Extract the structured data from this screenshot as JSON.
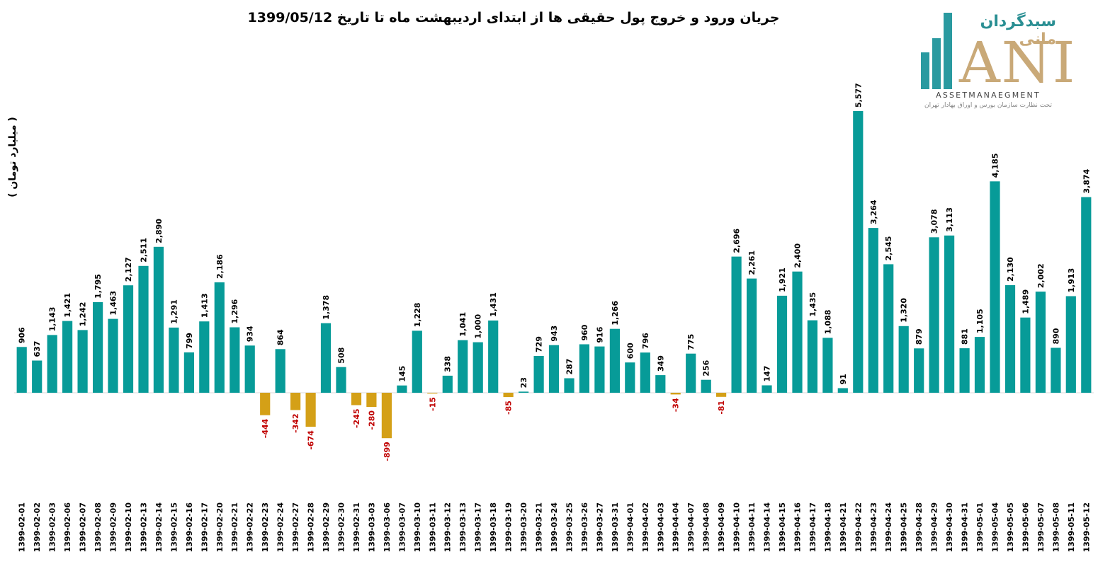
{
  "logo": {
    "brand_main": "سبدگردان",
    "brand_accent": "مانی",
    "letters": "ANI",
    "subtitle": "ASSETMANAEGMENT",
    "tagline": "تحت نظارت سازمان بورس و اوراق بهادار تهران"
  },
  "colors": {
    "positive": "#079B98",
    "negative": "#D4A017",
    "negative_label": "#C00000",
    "positive_label": "#000000"
  },
  "chart_data": {
    "type": "bar",
    "title": "جریان ورود و خروج پول حقیقی ها از ابتدای اردیبهشت ماه تا تاریخ 1399/05/12",
    "xlabel": "",
    "ylabel": "( میلیارد تومان )",
    "ylim": [
      -1500,
      6200
    ],
    "categories": [
      "1399-02-01",
      "1399-02-02",
      "1399-02-03",
      "1399-02-06",
      "1399-02-07",
      "1399-02-08",
      "1399-02-09",
      "1399-02-10",
      "1399-02-13",
      "1399-02-14",
      "1399-02-15",
      "1399-02-16",
      "1399-02-17",
      "1399-02-20",
      "1399-02-21",
      "1399-02-22",
      "1399-02-23",
      "1399-02-24",
      "1399-02-27",
      "1399-02-28",
      "1399-02-29",
      "1399-02-30",
      "1399-02-31",
      "1399-03-03",
      "1399-03-06",
      "1399-03-07",
      "1399-03-10",
      "1399-03-11",
      "1399-03-12",
      "1399-03-13",
      "1399-03-17",
      "1399-03-18",
      "1399-03-19",
      "1399-03-20",
      "1399-03-21",
      "1399-03-24",
      "1399-03-25",
      "1399-03-26",
      "1399-03-27",
      "1399-03-31",
      "1399-04-01",
      "1399-04-02",
      "1399-04-03",
      "1399-04-04",
      "1399-04-07",
      "1399-04-08",
      "1399-04-09",
      "1399-04-10",
      "1399-04-11",
      "1399-04-14",
      "1399-04-15",
      "1399-04-16",
      "1399-04-17",
      "1399-04-18",
      "1399-04-21",
      "1399-04-22",
      "1399-04-23",
      "1399-04-24",
      "1399-04-25",
      "1399-04-28",
      "1399-04-29",
      "1399-04-30",
      "1399-04-31",
      "1399-05-01",
      "1399-05-04",
      "1399-05-05",
      "1399-05-06",
      "1399-05-07",
      "1399-05-08",
      "1399-05-11",
      "1399-05-12"
    ],
    "values": [
      906,
      637,
      1143,
      1421,
      1242,
      1795,
      1463,
      2127,
      2511,
      2890,
      1291,
      799,
      1413,
      2186,
      1296,
      934,
      -444,
      864,
      -342,
      -674,
      1378,
      508,
      -245,
      -280,
      -899,
      145,
      1228,
      -15,
      338,
      1041,
      1000,
      1431,
      -85,
      23,
      729,
      943,
      287,
      960,
      916,
      1266,
      600,
      796,
      349,
      -34,
      775,
      256,
      -81,
      2696,
      2261,
      147,
      1921,
      2400,
      1435,
      1088,
      91,
      5577,
      3264,
      2545,
      1320,
      879,
      3078,
      3113,
      881,
      1105,
      4185,
      2130,
      1489,
      2002,
      890,
      1913,
      3874
    ],
    "labels": [
      "906",
      "637",
      "1,143",
      "1,421",
      "1,242",
      "1,795",
      "1,463",
      "2,127",
      "2,511",
      "2,890",
      "1,291",
      "799",
      "1,413",
      "2,186",
      "1,296",
      "934",
      "-444",
      "864",
      "-342",
      "-674",
      "1,378",
      "508",
      "-245",
      "-280",
      "-899",
      "145",
      "1,228",
      "-15",
      "338",
      "1,041",
      "1,000",
      "1,431",
      "-85",
      "23",
      "729",
      "943",
      "287",
      "960",
      "916",
      "1,266",
      "600",
      "796",
      "349",
      "-34",
      "775",
      "256",
      "-81",
      "2,696",
      "2,261",
      "147",
      "1,921",
      "2,400",
      "1,435",
      "1,088",
      "91",
      "5,577",
      "3,264",
      "2,545",
      "1,320",
      "879",
      "3,078",
      "3,113",
      "881",
      "1,105",
      "4,185",
      "2,130",
      "1,489",
      "2,002",
      "890",
      "1,913",
      "3,874"
    ],
    "grid": false,
    "legend": "none"
  }
}
